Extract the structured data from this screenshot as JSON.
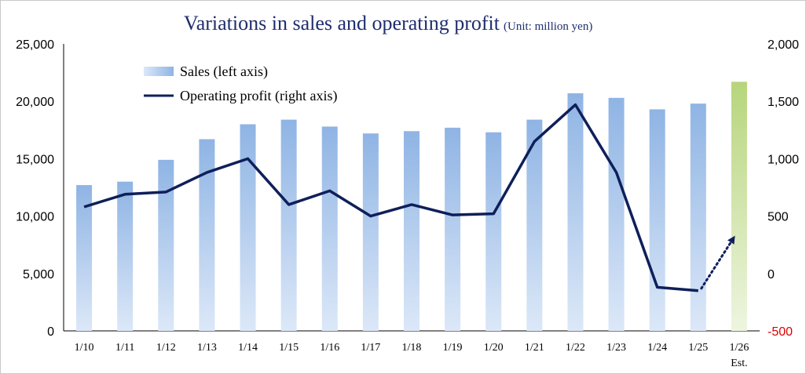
{
  "chart_data": {
    "type": "bar",
    "title": "Variations in sales and operating profit",
    "subtitle": "(Unit: million yen)",
    "categories": [
      "1/10",
      "1/11",
      "1/12",
      "1/13",
      "1/14",
      "1/15",
      "1/16",
      "1/17",
      "1/18",
      "1/19",
      "1/20",
      "1/21",
      "1/22",
      "1/23",
      "1/24",
      "1/25",
      "1/26"
    ],
    "category_sublabels": {
      "1/26": "Est."
    },
    "series": [
      {
        "name": "Sales (left axis)",
        "type": "bar",
        "axis": "left",
        "values": [
          12700,
          13000,
          14900,
          16700,
          18000,
          18400,
          17800,
          17200,
          17400,
          17700,
          17300,
          18400,
          20700,
          20300,
          19300,
          19800,
          21700
        ],
        "color": "#8fb4e4",
        "estimate_color": "#b7d57c"
      },
      {
        "name": "Operating profit (right axis)",
        "type": "line",
        "axis": "right",
        "values": [
          580,
          690,
          710,
          880,
          1000,
          600,
          720,
          500,
          600,
          510,
          520,
          1150,
          1470,
          880,
          -120,
          -150,
          null
        ],
        "estimate": {
          "from": "1/25",
          "to": "1/26",
          "from_value": -150,
          "to_value": 300,
          "style": "dotted-arrow"
        },
        "color": "#0f1f5a"
      }
    ],
    "y_left": {
      "min": 0,
      "max": 25000,
      "ticks": [
        "0",
        "5,000",
        "10,000",
        "15,000",
        "20,000",
        "25,000"
      ],
      "tick_values": [
        0,
        5000,
        10000,
        15000,
        20000,
        25000
      ]
    },
    "y_right": {
      "min": -500,
      "max": 2000,
      "ticks": [
        "-500",
        "0",
        "500",
        "1,000",
        "1,500",
        "2,000"
      ],
      "tick_values": [
        -500,
        0,
        500,
        1000,
        1500,
        2000
      ]
    },
    "legend_position": "top-left",
    "grid": false
  }
}
